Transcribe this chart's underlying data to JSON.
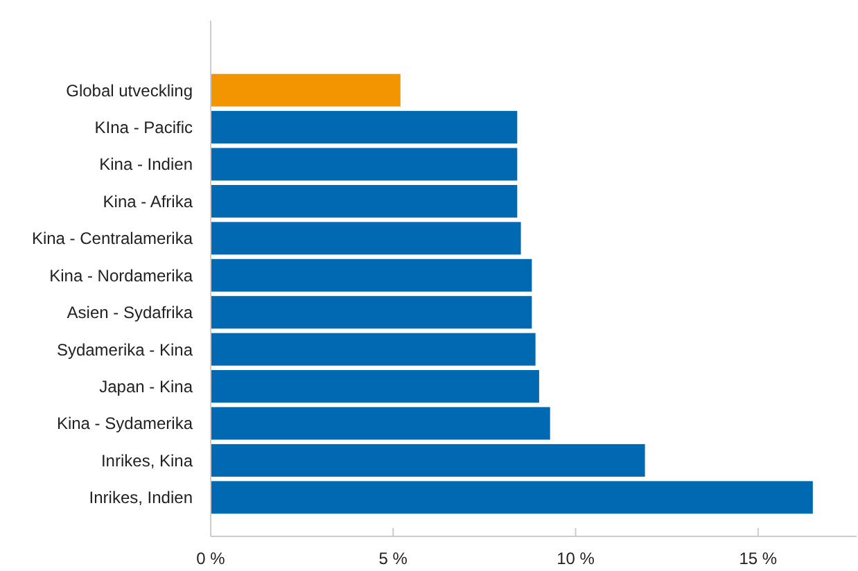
{
  "chart_data": {
    "type": "bar",
    "orientation": "horizontal",
    "categories": [
      "Global utveckling",
      "KIna - Pacific",
      "Kina - Indien",
      "Kina - Afrika",
      "Kina - Centralamerika",
      "Kina - Nordamerika",
      "Asien - Sydafrika",
      "Sydamerika - Kina",
      "Japan - Kina",
      "Kina - Sydamerika",
      "Inrikes, Kina",
      "Inrikes, Indien"
    ],
    "values": [
      5.2,
      8.4,
      8.4,
      8.4,
      8.5,
      8.8,
      8.8,
      8.9,
      9.0,
      9.3,
      11.9,
      16.5
    ],
    "colors": [
      "#f29500",
      "#0069b1",
      "#0069b1",
      "#0069b1",
      "#0069b1",
      "#0069b1",
      "#0069b1",
      "#0069b1",
      "#0069b1",
      "#0069b1",
      "#0069b1",
      "#0069b1"
    ],
    "xlim": [
      0,
      17.7
    ],
    "xticks": [
      {
        "value": 0,
        "label": "0 %"
      },
      {
        "value": 5,
        "label": "5 %"
      },
      {
        "value": 10,
        "label": "10 %"
      },
      {
        "value": 15,
        "label": "15 %"
      }
    ],
    "grid": false
  }
}
